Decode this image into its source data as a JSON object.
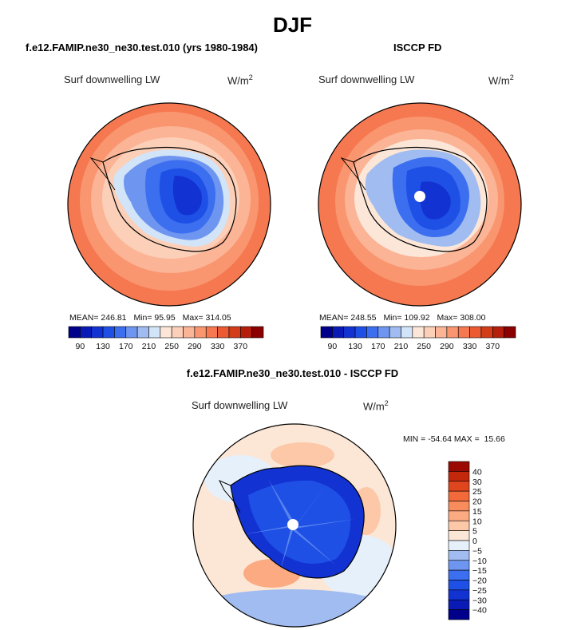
{
  "figure": {
    "season": "DJF",
    "panel_a": {
      "case_title": "f.e12.FAMIP.ne30_ne30.test.010 (yrs 1980-1984)",
      "var_label": "Surf downwelling LW",
      "units": "W/m",
      "units_sup": "2",
      "stats": {
        "mean_label": "MEAN=",
        "mean": "246.81",
        "min_label": "Min=",
        "min": "95.95",
        "max_label": "Max=",
        "max": "314.05"
      }
    },
    "panel_b": {
      "case_title": "ISCCP FD",
      "var_label": "Surf downwelling LW",
      "units": "W/m",
      "units_sup": "2",
      "stats": {
        "mean_label": "MEAN=",
        "mean": "248.55",
        "min_label": "Min=",
        "min": "109.92",
        "max_label": "Max=",
        "max": "308.00"
      }
    },
    "panel_c": {
      "case_title": "f.e12.FAMIP.ne30_ne30.test.010 - ISCCP FD",
      "var_label": "Surf downwelling LW",
      "units": "W/m",
      "units_sup": "2",
      "minmax": "MIN = -54.64 MAX =  15.66"
    },
    "colorbar_horizontal": {
      "colors": [
        "#00008b",
        "#0a1ab4",
        "#1232d2",
        "#1e50e6",
        "#3c6ef0",
        "#6e96f0",
        "#a0bcf0",
        "#d2e4f8",
        "#fbe6d8",
        "#fcd0b8",
        "#fbb496",
        "#f99670",
        "#f57850",
        "#eb5a32",
        "#d23c19",
        "#b41e0a",
        "#8b0000"
      ],
      "tick_labels": [
        "90",
        "130",
        "170",
        "210",
        "250",
        "290",
        "330",
        "370"
      ]
    },
    "colorbar_vertical": {
      "colors": [
        "#00008b",
        "#0a1ab4",
        "#1232d2",
        "#1e50e6",
        "#3c6ef0",
        "#6e96f0",
        "#a0bcf0",
        "#e6f0fa",
        "#fce6d6",
        "#fcc8a8",
        "#fbaa82",
        "#f98c5c",
        "#f26a3a",
        "#e0461e",
        "#c3280c",
        "#9b0a00"
      ],
      "tick_labels": [
        "40",
        "30",
        "25",
        "20",
        "15",
        "10",
        "5",
        "0",
        "−5",
        "−10",
        "−15",
        "−20",
        "−25",
        "−30",
        "−40"
      ]
    }
  }
}
